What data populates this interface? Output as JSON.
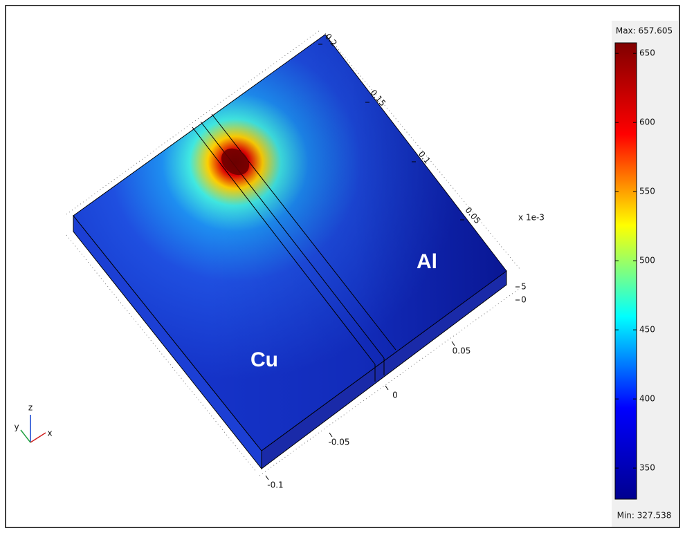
{
  "chart_data": {
    "type": "surface3d",
    "materials": [
      "Cu",
      "Al"
    ],
    "yticks": [
      0.05,
      0.1,
      0.15,
      0.2
    ],
    "xticks": [
      -0.1,
      -0.05,
      0,
      0.05
    ],
    "zticks": [
      5,
      0
    ],
    "z_scale_label": "x 1e-3",
    "triad": [
      "x",
      "y",
      "z"
    ],
    "clim": [
      327.538,
      657.605
    ],
    "clim_labels": [
      "Min: 327.538",
      "Max: 657.605"
    ],
    "cticks": [
      350,
      400,
      450,
      500,
      550,
      600,
      650
    ],
    "colormap": [
      "#00008f",
      "#0000ff",
      "#00ffff",
      "#ffff00",
      "#ff0000",
      "#800000"
    ]
  }
}
